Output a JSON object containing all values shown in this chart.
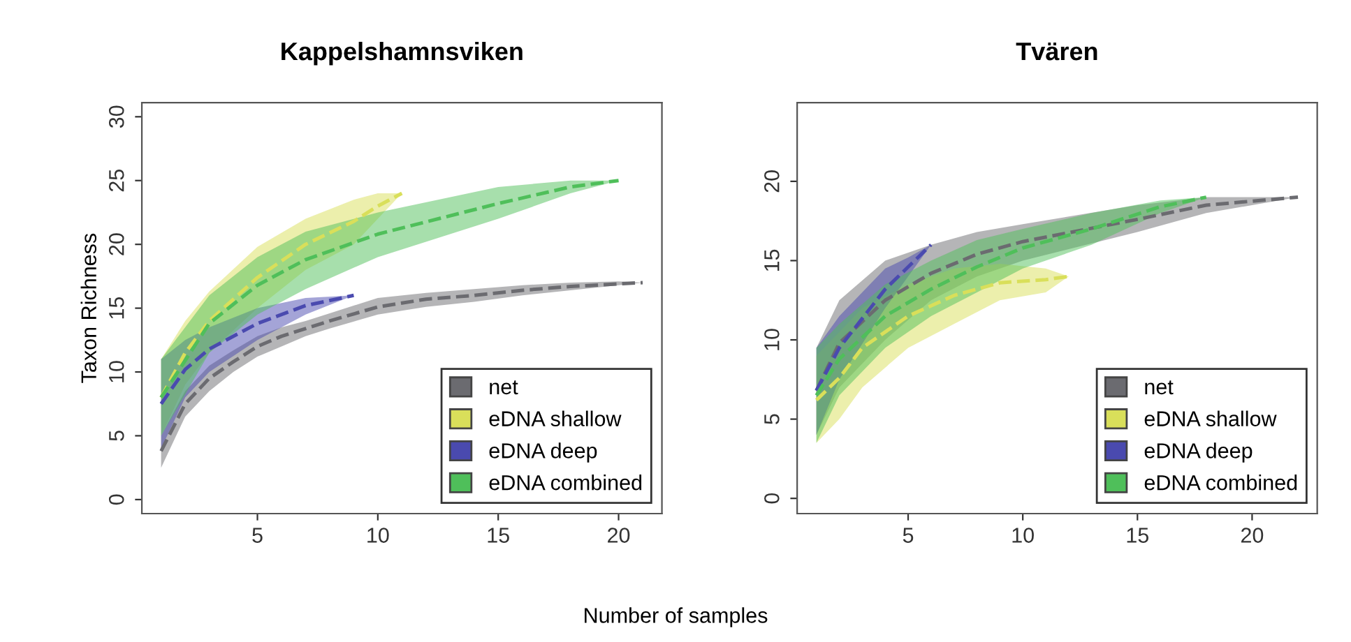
{
  "chart_data": [
    {
      "type": "line",
      "title": "Kappelshamnsviken",
      "xlabel": "Number of samples",
      "ylabel": "Taxon Richness",
      "xlim": [
        0.2,
        21.8
      ],
      "xticks": [
        5,
        10,
        15,
        20
      ],
      "ylim": [
        -1.1,
        31.1
      ],
      "yticks": [
        0,
        5,
        10,
        15,
        20,
        25,
        30
      ],
      "grid": false,
      "legend": "bottom right",
      "line_style": "dashed",
      "series": [
        {
          "name": "net",
          "color": "#6b6b70",
          "x": [
            1,
            2,
            3,
            4,
            5,
            6,
            7,
            8,
            10,
            12,
            14,
            16,
            18,
            20,
            21
          ],
          "values": [
            3.8,
            7.5,
            9.5,
            10.8,
            12,
            12.8,
            13.4,
            14,
            15.1,
            15.7,
            16,
            16.4,
            16.7,
            16.9,
            17
          ],
          "lower": [
            2.5,
            6.5,
            8.5,
            10,
            11.2,
            12,
            12.8,
            13.4,
            14.5,
            15.1,
            15.5,
            16,
            16.4,
            16.8,
            17
          ],
          "upper": [
            5,
            8.5,
            10.5,
            11.7,
            12.8,
            13.5,
            14,
            14.6,
            15.8,
            16.2,
            16.5,
            16.8,
            17,
            17.1,
            17
          ]
        },
        {
          "name": "eDNA shallow",
          "color": "#d9df5a",
          "x": [
            1,
            2,
            3,
            5,
            7,
            9,
            10,
            11
          ],
          "values": [
            8,
            11.5,
            14,
            17.4,
            20,
            21.8,
            23,
            24
          ],
          "lower": [
            5,
            9,
            11.5,
            15,
            18,
            20,
            22,
            24
          ],
          "upper": [
            11,
            14,
            16.3,
            19.8,
            22,
            23.5,
            24,
            24
          ]
        },
        {
          "name": "eDNA deep",
          "color": "#4a4aaf",
          "x": [
            1,
            2,
            3,
            5,
            7,
            9
          ],
          "values": [
            7.5,
            10.2,
            11.8,
            13.8,
            15.2,
            16
          ],
          "lower": [
            4,
            8,
            10,
            12.5,
            14.5,
            16
          ],
          "upper": [
            11,
            12.5,
            13.5,
            15,
            15.8,
            16
          ]
        },
        {
          "name": "eDNA combined",
          "color": "#4fbf5a",
          "x": [
            1,
            3,
            5,
            7,
            10,
            15,
            18,
            20
          ],
          "values": [
            8,
            13.8,
            16.8,
            18.8,
            20.8,
            23.2,
            24.5,
            25
          ],
          "lower": [
            5,
            11.5,
            14.5,
            16.5,
            19,
            22,
            24,
            25
          ],
          "upper": [
            11,
            16,
            19,
            21,
            22.5,
            24.5,
            25,
            25
          ]
        }
      ]
    },
    {
      "type": "line",
      "title": "Tvären",
      "xlim": [
        0.16,
        22.84
      ],
      "xticks": [
        5,
        10,
        15,
        20
      ],
      "ylim": [
        -0.96,
        24.96
      ],
      "yticks": [
        0,
        5,
        10,
        15,
        20
      ],
      "grid": false,
      "legend": "bottom right",
      "line_style": "dashed",
      "series": [
        {
          "name": "net",
          "color": "#6b6b70",
          "x": [
            1,
            2,
            4,
            6,
            8,
            10,
            15,
            18,
            22
          ],
          "values": [
            6.8,
            9.8,
            12.5,
            14.2,
            15.4,
            16.2,
            17.6,
            18.5,
            19
          ],
          "lower": [
            4,
            7,
            10,
            12.5,
            14,
            15,
            16.8,
            18,
            19
          ],
          "upper": [
            9.5,
            12.5,
            15,
            16,
            16.8,
            17.3,
            18.5,
            19,
            19
          ]
        },
        {
          "name": "eDNA shallow",
          "color": "#d9df5a",
          "x": [
            1,
            2,
            3,
            5,
            7,
            9,
            11,
            12
          ],
          "values": [
            6.2,
            7.6,
            9.5,
            11.5,
            12.8,
            13.6,
            13.8,
            14
          ],
          "lower": [
            3.5,
            5,
            7,
            9.5,
            11,
            12.5,
            13,
            14
          ],
          "upper": [
            9,
            10.5,
            12,
            13.5,
            14.5,
            14.8,
            14.5,
            14
          ]
        },
        {
          "name": "eDNA deep",
          "color": "#4a4aaf",
          "x": [
            1,
            2,
            4,
            5,
            6
          ],
          "values": [
            6.8,
            9.5,
            13.2,
            14.6,
            16
          ],
          "lower": [
            4,
            7.5,
            12,
            14,
            16
          ],
          "upper": [
            9.5,
            11.5,
            14.5,
            15.2,
            16
          ]
        },
        {
          "name": "eDNA combined",
          "color": "#4fbf5a",
          "x": [
            1,
            2,
            4,
            6,
            8,
            10,
            13,
            16,
            18
          ],
          "values": [
            6.5,
            8.8,
            11.5,
            13.2,
            14.6,
            15.8,
            17,
            18.4,
            19
          ],
          "lower": [
            3.5,
            6.5,
            9.5,
            11.5,
            13,
            14.5,
            16,
            18,
            19
          ],
          "upper": [
            9.5,
            11,
            13.5,
            15,
            16.3,
            17,
            18,
            18.8,
            19
          ]
        }
      ]
    }
  ]
}
